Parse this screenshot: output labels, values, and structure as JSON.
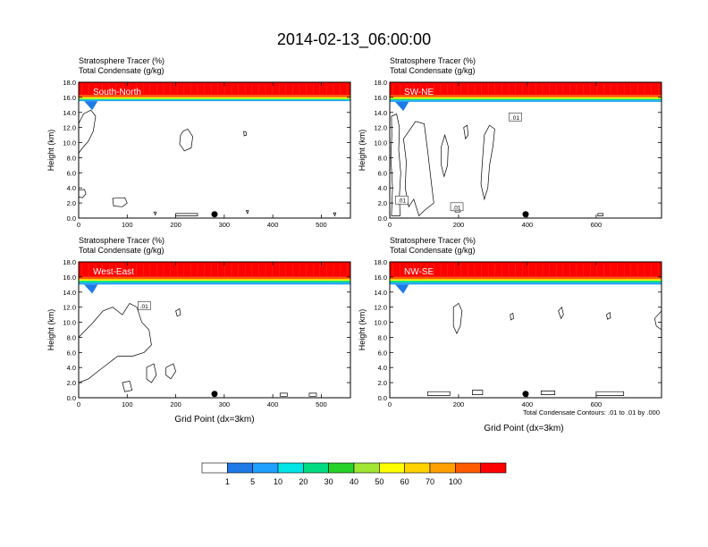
{
  "figure": {
    "title": "2014-02-13_06:00:00",
    "footnote": "Total Condensate Contours: .01 to .01 by .000"
  },
  "colors": {
    "levels": [
      "#ffffff",
      "#1e7ae6",
      "#1ea0ff",
      "#00e5e5",
      "#00dc82",
      "#28d228",
      "#a0e632",
      "#ffff00",
      "#ffd200",
      "#ffa000",
      "#ff5a00",
      "#ff0000"
    ],
    "outline": "#000000"
  },
  "chart_data": [
    {
      "type": "heatmap",
      "panel_label": "South-North",
      "subtitle_line1": "Stratosphere Tracer   (%)",
      "subtitle_line2": "Total Condensate   (g/kg)",
      "ylabel": "Height (km)",
      "xlabel": "",
      "xlim": [
        0,
        560
      ],
      "ylim": [
        0,
        18
      ],
      "xticks": [
        "0",
        "100",
        "200",
        "300",
        "400",
        "500"
      ],
      "xtick_values": [
        0,
        100,
        200,
        300,
        400,
        500
      ],
      "yticks": [
        "0.0",
        "2.0",
        "4.0",
        "6.0",
        "8.0",
        "10.0",
        "12.0",
        "14.0",
        "16.0",
        "18.0"
      ],
      "tracer_bands_km": {
        "red_top": 18.0,
        "red_bottom": 16.3,
        "orange_bottom": 16.0,
        "yellow_bottom": 15.8,
        "cyan_bottom": 15.5
      },
      "marker_x": 280,
      "contour_labels": []
    },
    {
      "type": "heatmap",
      "panel_label": "SW-NE",
      "subtitle_line1": "Stratosphere Tracer   (%)",
      "subtitle_line2": "Total Condensate   (g/kg)",
      "ylabel": "Height (km)",
      "xlabel": "",
      "xlim": [
        0,
        790
      ],
      "ylim": [
        0,
        18
      ],
      "xticks": [
        "0",
        "200",
        "400",
        "600"
      ],
      "xtick_values": [
        0,
        200,
        400,
        600
      ],
      "yticks": [
        "0.0",
        "2.0",
        "4.0",
        "6.0",
        "8.0",
        "10.0",
        "12.0",
        "14.0",
        "16.0",
        "18.0"
      ],
      "tracer_bands_km": {
        "red_top": 18.0,
        "red_bottom": 16.3,
        "orange_bottom": 16.0,
        "yellow_bottom": 15.8,
        "cyan_bottom": 15.4
      },
      "marker_x": 395,
      "contour_labels": [
        ".01",
        ".01",
        ".01"
      ]
    },
    {
      "type": "heatmap",
      "panel_label": "West-East",
      "subtitle_line1": "Stratosphere Tracer   (%)",
      "subtitle_line2": "Total Condensate   (g/kg)",
      "ylabel": "Height (km)",
      "xlabel": "Grid Point (dx=3km)",
      "xlim": [
        0,
        560
      ],
      "ylim": [
        0,
        18
      ],
      "xticks": [
        "0",
        "100",
        "200",
        "300",
        "400",
        "500"
      ],
      "xtick_values": [
        0,
        100,
        200,
        300,
        400,
        500
      ],
      "yticks": [
        "0.0",
        "2.0",
        "4.0",
        "6.0",
        "8.0",
        "10.0",
        "12.0",
        "14.0",
        "16.0",
        "18.0"
      ],
      "tracer_bands_km": {
        "red_top": 18.0,
        "red_bottom": 16.0,
        "orange_bottom": 15.7,
        "yellow_bottom": 15.5,
        "cyan_bottom": 15.0
      },
      "marker_x": 280,
      "contour_labels": [
        ".01"
      ]
    },
    {
      "type": "heatmap",
      "panel_label": "NW-SE",
      "subtitle_line1": "Stratosphere Tracer   (%)",
      "subtitle_line2": "Total Condensate   (g/kg)",
      "ylabel": "Height (km)",
      "xlabel": "Grid Point (dx=3km)",
      "xlim": [
        0,
        790
      ],
      "ylim": [
        0,
        18
      ],
      "xticks": [
        "0",
        "200",
        "400",
        "600"
      ],
      "xtick_values": [
        0,
        200,
        400,
        600
      ],
      "yticks": [
        "0.0",
        "2.0",
        "4.0",
        "6.0",
        "8.0",
        "10.0",
        "12.0",
        "14.0",
        "16.0",
        "18.0"
      ],
      "tracer_bands_km": {
        "red_top": 18.0,
        "red_bottom": 16.0,
        "orange_bottom": 15.7,
        "yellow_bottom": 15.5,
        "cyan_bottom": 15.0
      },
      "marker_x": 395,
      "contour_labels": []
    }
  ],
  "colorbar": {
    "labels": [
      "1",
      "5",
      "10",
      "20",
      "30",
      "40",
      "50",
      "60",
      "70",
      "100"
    ]
  }
}
